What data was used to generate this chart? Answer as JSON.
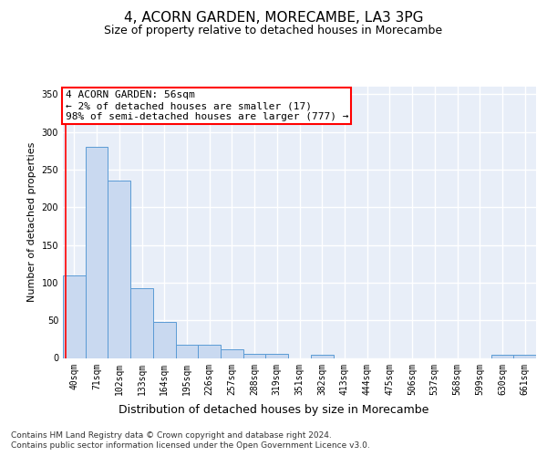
{
  "title": "4, ACORN GARDEN, MORECAMBE, LA3 3PG",
  "subtitle": "Size of property relative to detached houses in Morecambe",
  "xlabel": "Distribution of detached houses by size in Morecambe",
  "ylabel": "Number of detached properties",
  "categories": [
    "40sqm",
    "71sqm",
    "102sqm",
    "133sqm",
    "164sqm",
    "195sqm",
    "226sqm",
    "257sqm",
    "288sqm",
    "319sqm",
    "351sqm",
    "382sqm",
    "413sqm",
    "444sqm",
    "475sqm",
    "506sqm",
    "537sqm",
    "568sqm",
    "599sqm",
    "630sqm",
    "661sqm"
  ],
  "values": [
    110,
    280,
    235,
    93,
    48,
    18,
    18,
    11,
    5,
    5,
    0,
    4,
    0,
    0,
    0,
    0,
    0,
    0,
    0,
    4,
    4
  ],
  "bar_color": "#c9d9f0",
  "bar_edge_color": "#5b9bd5",
  "annotation_text": "4 ACORN GARDEN: 56sqm\n← 2% of detached houses are smaller (17)\n98% of semi-detached houses are larger (777) →",
  "annotation_box_color": "white",
  "annotation_box_edge_color": "red",
  "ylim": [
    0,
    360
  ],
  "yticks": [
    0,
    50,
    100,
    150,
    200,
    250,
    300,
    350
  ],
  "background_color": "#e8eef8",
  "grid_color": "white",
  "footer_text": "Contains HM Land Registry data © Crown copyright and database right 2024.\nContains public sector information licensed under the Open Government Licence v3.0.",
  "title_fontsize": 11,
  "subtitle_fontsize": 9,
  "xlabel_fontsize": 9,
  "ylabel_fontsize": 8,
  "tick_fontsize": 7,
  "annotation_fontsize": 8,
  "footer_fontsize": 6.5
}
